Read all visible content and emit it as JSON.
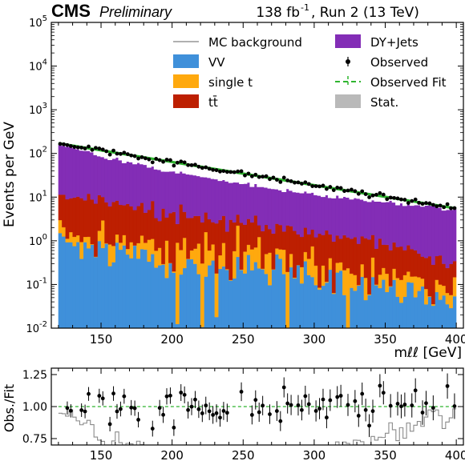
{
  "header": {
    "experiment": "CMS",
    "status": "Preliminary",
    "lumi": "138 fb",
    "lumi_exp": "-1",
    "run": ", Run 2 (13 TeV)"
  },
  "colors": {
    "VV": "#3f90da",
    "single_t": "#ffa90e",
    "ttbar": "#bd1f01",
    "DY": "#832db6",
    "stat": "#b9b9b9",
    "fit": "#2fb52f",
    "mc_line": "#b0b0b0",
    "observed": "#000000"
  },
  "legend": {
    "position": "top-right",
    "entries": [
      {
        "key": "mc",
        "label": "MC background",
        "style": "line"
      },
      {
        "key": "DY",
        "label": "DY+Jets",
        "style": "box"
      },
      {
        "key": "VV",
        "label": "VV",
        "style": "box"
      },
      {
        "key": "obs",
        "label": "Observed",
        "style": "marker"
      },
      {
        "key": "single_t",
        "label": "single t",
        "style": "box"
      },
      {
        "key": "fit",
        "label": "Observed Fit",
        "style": "dashed"
      },
      {
        "key": "ttbar",
        "label": "tt̄",
        "style": "box"
      },
      {
        "key": "stat",
        "label": "Stat.",
        "style": "box"
      }
    ]
  },
  "chart_data": [
    {
      "type": "area",
      "panel": "main",
      "ylabel": "Events per GeV",
      "xlabel": "mℓℓ [GeV]",
      "yscale": "log",
      "xlim": [
        115,
        405
      ],
      "ylim": [
        0.01,
        100000
      ],
      "yticks": [
        "10^-2",
        "10^-1",
        "10^0",
        "10^1",
        "10^2",
        "10^3",
        "10^4",
        "10^5"
      ],
      "xticks": [
        150,
        200,
        250,
        300,
        350,
        400
      ],
      "x_range": [
        120,
        400
      ],
      "bin_width_gev": 2.5,
      "stack_order": [
        "VV",
        "single_t",
        "ttbar",
        "DY"
      ],
      "series": [
        {
          "name": "VV",
          "approx_values_at": {
            "x": [
              120,
              150,
              200,
              250,
              300,
              350,
              400
            ],
            "y": [
              0.9,
              0.8,
              0.3,
              0.25,
              0.15,
              0.08,
              0.04
            ]
          }
        },
        {
          "name": "single t",
          "approx_values_at": {
            "x": [
              120,
              150,
              200,
              250,
              300,
              350,
              400
            ],
            "y": [
              0.6,
              0.6,
              0.5,
              0.4,
              0.25,
              0.1,
              0.04
            ]
          }
        },
        {
          "name": "tt̄",
          "approx_values_at": {
            "x": [
              120,
              150,
              200,
              250,
              300,
              350,
              400
            ],
            "y": [
              7,
              7,
              3,
              2,
              1.2,
              0.6,
              0.2
            ]
          }
        },
        {
          "name": "DY+Jets",
          "approx_values_at": {
            "x": [
              120,
              150,
              200,
              250,
              300,
              350,
              400
            ],
            "y": [
              160,
              80,
              35,
              18,
              10,
              7,
              5
            ]
          }
        }
      ],
      "observed_fit": {
        "x": [
          120,
          400
        ],
        "y": [
          170,
          5.5
        ]
      },
      "observed": {
        "x_start": 120.0,
        "x_step": 2.5,
        "y_trend": "falls from ~180 at 120 GeV to ~5 at 400 GeV"
      }
    },
    {
      "type": "scatter",
      "panel": "ratio",
      "ylabel": "Obs./Fit",
      "ylim": [
        0.7,
        1.3
      ],
      "yticks": [
        0.75,
        1.0,
        1.25
      ],
      "xticks": [
        150,
        200,
        250,
        300,
        350,
        400
      ],
      "reference_line": 1.0
    }
  ]
}
